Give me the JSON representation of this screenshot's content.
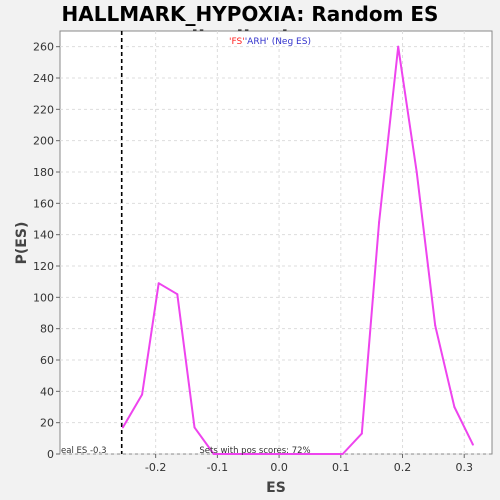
{
  "chart_data": {
    "type": "line",
    "title": "HALLMARK_HYPOXIA: Random ES distribution",
    "xlabel": "ES",
    "ylabel": "P(ES)",
    "xlim": [
      -0.355,
      0.345
    ],
    "ylim": [
      0,
      270
    ],
    "x_ticks": [
      "-0.2",
      "-0.1",
      "0.0",
      "0.1",
      "0.2",
      "0.3"
    ],
    "x_tick_values": [
      -0.2,
      -0.1,
      0.0,
      0.1,
      0.2,
      0.3
    ],
    "y_ticks": [
      "0",
      "20",
      "40",
      "60",
      "80",
      "100",
      "120",
      "140",
      "160",
      "180",
      "200",
      "220",
      "240",
      "260"
    ],
    "y_tick_values": [
      0,
      20,
      40,
      60,
      80,
      100,
      120,
      140,
      160,
      180,
      200,
      220,
      240,
      260
    ],
    "grid": true,
    "series": [
      {
        "x": [
          -0.253,
          -0.222,
          -0.195,
          -0.165,
          -0.137,
          -0.106,
          -0.077,
          0.103,
          0.134,
          0.162,
          0.193,
          0.223,
          0.253,
          0.284,
          0.314
        ],
        "y": [
          17,
          38,
          109,
          102,
          17,
          0,
          0,
          0,
          13,
          148,
          260,
          180,
          82,
          30,
          6
        ],
        "color": "#ee44ee"
      }
    ],
    "real_es": -0.255,
    "real_es_label": "eal ES -0.3",
    "pos_scores_label": "Sets with pos scores: 72%",
    "legend_parts": [
      {
        "text": "'FS'",
        "color": "#ff2222"
      },
      {
        "text": "'ARH' (Neg ES)",
        "color": "#3333cc"
      }
    ]
  }
}
